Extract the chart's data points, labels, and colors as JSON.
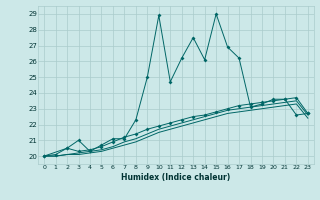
{
  "xlabel": "Humidex (Indice chaleur)",
  "bg_color": "#cce8e8",
  "grid_color": "#aacccc",
  "line_color": "#006666",
  "xlim": [
    -0.5,
    23.5
  ],
  "ylim": [
    19.5,
    29.5
  ],
  "yticks": [
    20,
    21,
    22,
    23,
    24,
    25,
    26,
    27,
    28,
    29
  ],
  "xticks": [
    0,
    1,
    2,
    3,
    4,
    5,
    6,
    7,
    8,
    9,
    10,
    11,
    12,
    13,
    14,
    15,
    16,
    17,
    18,
    19,
    20,
    21,
    22,
    23
  ],
  "line1_x": [
    0,
    1,
    2,
    3,
    4,
    5,
    6,
    7,
    8,
    9,
    10,
    11,
    12,
    13,
    14,
    15,
    16,
    17,
    18,
    19,
    20,
    21,
    22,
    23
  ],
  "line1_y": [
    20.0,
    20.1,
    20.5,
    21.0,
    20.3,
    20.7,
    21.1,
    21.1,
    22.3,
    25.0,
    28.9,
    24.7,
    26.2,
    27.5,
    26.1,
    29.0,
    26.9,
    26.2,
    23.1,
    23.3,
    23.6,
    23.6,
    22.6,
    22.7
  ],
  "line2_x": [
    0,
    2,
    3,
    4,
    5,
    6,
    7,
    8,
    9,
    10,
    11,
    12,
    13,
    14,
    15,
    16,
    17,
    18,
    19,
    20,
    21,
    22,
    23
  ],
  "line2_y": [
    20.0,
    20.5,
    20.3,
    20.4,
    20.6,
    20.9,
    21.2,
    21.4,
    21.7,
    21.9,
    22.1,
    22.3,
    22.5,
    22.6,
    22.8,
    23.0,
    23.2,
    23.3,
    23.4,
    23.5,
    23.6,
    23.7,
    22.7
  ],
  "line3_x": [
    0,
    1,
    2,
    3,
    4,
    5,
    6,
    7,
    8,
    9,
    10,
    11,
    12,
    13,
    14,
    15,
    16,
    17,
    18,
    19,
    20,
    21,
    22,
    23
  ],
  "line3_y": [
    20.0,
    20.0,
    20.1,
    20.2,
    20.3,
    20.4,
    20.6,
    20.9,
    21.1,
    21.4,
    21.7,
    21.9,
    22.1,
    22.3,
    22.5,
    22.7,
    22.9,
    23.0,
    23.1,
    23.2,
    23.3,
    23.4,
    23.5,
    22.6
  ],
  "line4_x": [
    0,
    1,
    2,
    3,
    4,
    5,
    6,
    7,
    8,
    9,
    10,
    11,
    12,
    13,
    14,
    15,
    16,
    17,
    18,
    19,
    20,
    21,
    22,
    23
  ],
  "line4_y": [
    20.0,
    20.0,
    20.1,
    20.1,
    20.2,
    20.3,
    20.5,
    20.7,
    20.9,
    21.2,
    21.5,
    21.7,
    21.9,
    22.1,
    22.3,
    22.5,
    22.7,
    22.8,
    22.9,
    23.0,
    23.1,
    23.2,
    23.3,
    22.4
  ]
}
